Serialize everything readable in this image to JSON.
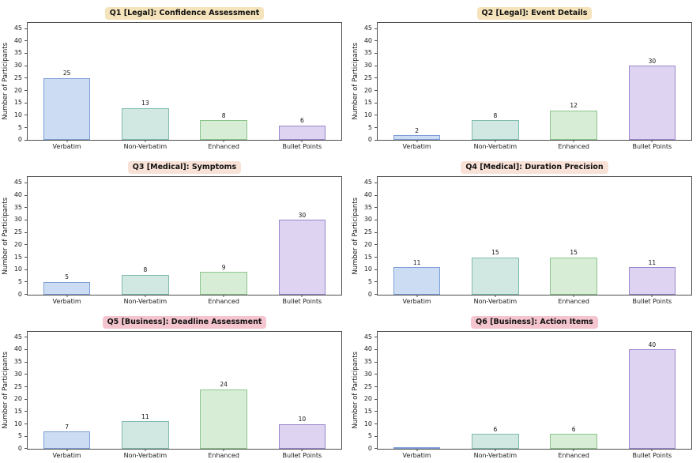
{
  "figure": {
    "background": "#ffffff",
    "grid": "2 columns x 3 rows of bar subplots"
  },
  "style": {
    "spine_color": "#4d4d4d",
    "text_color": "#1a1a1a",
    "bar_colors": [
      {
        "category": "Verbatim",
        "fill": "#ccdcf2",
        "stroke": "#7d9fd6"
      },
      {
        "category": "Non-Verbatim",
        "fill": "#d0e8e1",
        "stroke": "#80bcae"
      },
      {
        "category": "Enhanced",
        "fill": "#d7edd5",
        "stroke": "#8bc58b"
      },
      {
        "category": "Bullet Points",
        "fill": "#ded3f1",
        "stroke": "#9a86cc"
      }
    ],
    "title_backgrounds": {
      "legal": "#f5e3bc",
      "medical": "#f8e1d6",
      "business": "#f4c5ce"
    }
  },
  "chart_data": [
    {
      "type": "bar",
      "title": "Q1 [Legal]: Confidence Assessment",
      "title_bg": "#f5e3bc",
      "categories": [
        "Verbatim",
        "Non-Verbatim",
        "Enhanced",
        "Bullet Points"
      ],
      "values": [
        25,
        13,
        8,
        6
      ],
      "xlabel": "",
      "ylabel": "Number of Participants",
      "ylim": [
        0,
        47.25
      ],
      "yticks": [
        0,
        5,
        10,
        15,
        20,
        25,
        30,
        35,
        40,
        45
      ],
      "grid": false,
      "legend": "none"
    },
    {
      "type": "bar",
      "title": "Q2 [Legal]: Event Details",
      "title_bg": "#f5e3bc",
      "categories": [
        "Verbatim",
        "Non-Verbatim",
        "Enhanced",
        "Bullet Points"
      ],
      "values": [
        2,
        8,
        12,
        30
      ],
      "xlabel": "",
      "ylabel": "Number of Participants",
      "ylim": [
        0,
        47.25
      ],
      "yticks": [
        0,
        5,
        10,
        15,
        20,
        25,
        30,
        35,
        40,
        45
      ],
      "grid": false,
      "legend": "none"
    },
    {
      "type": "bar",
      "title": "Q3 [Medical]: Symptoms",
      "title_bg": "#f8e1d6",
      "categories": [
        "Verbatim",
        "Non-Verbatim",
        "Enhanced",
        "Bullet Points"
      ],
      "values": [
        5,
        8,
        9,
        30
      ],
      "xlabel": "",
      "ylabel": "Number of Participants",
      "ylim": [
        0,
        47.25
      ],
      "yticks": [
        0,
        5,
        10,
        15,
        20,
        25,
        30,
        35,
        40,
        45
      ],
      "grid": false,
      "legend": "none"
    },
    {
      "type": "bar",
      "title": "Q4 [Medical]: Duration Precision",
      "title_bg": "#f8e1d6",
      "categories": [
        "Verbatim",
        "Non-Verbatim",
        "Enhanced",
        "Bullet Points"
      ],
      "values": [
        11,
        15,
        15,
        11
      ],
      "xlabel": "",
      "ylabel": "Number of Participants",
      "ylim": [
        0,
        47.25
      ],
      "yticks": [
        0,
        5,
        10,
        15,
        20,
        25,
        30,
        35,
        40,
        45
      ],
      "grid": false,
      "legend": "none"
    },
    {
      "type": "bar",
      "title": "Q5 [Business]: Deadline Assessment",
      "title_bg": "#f4c5ce",
      "categories": [
        "Verbatim",
        "Non-Verbatim",
        "Enhanced",
        "Bullet Points"
      ],
      "values": [
        7,
        11,
        24,
        10
      ],
      "xlabel": "",
      "ylabel": "Number of Participants",
      "ylim": [
        0,
        47.25
      ],
      "yticks": [
        0,
        5,
        10,
        15,
        20,
        25,
        30,
        35,
        40,
        45
      ],
      "grid": false,
      "legend": "none",
      "note_zero_labels_hidden": false
    },
    {
      "type": "bar",
      "title": "Q6 [Business]: Action Items",
      "title_bg": "#f4c5ce",
      "categories": [
        "Verbatim",
        "Non-Verbatim",
        "Enhanced",
        "Bullet Points"
      ],
      "values": [
        0,
        6,
        6,
        40
      ],
      "xlabel": "",
      "ylabel": "Number of Participants",
      "ylim": [
        0,
        47.25
      ],
      "yticks": [
        0,
        5,
        10,
        15,
        20,
        25,
        30,
        35,
        40,
        45
      ],
      "grid": false,
      "legend": "none",
      "note_zero_labels_hidden": true
    }
  ]
}
